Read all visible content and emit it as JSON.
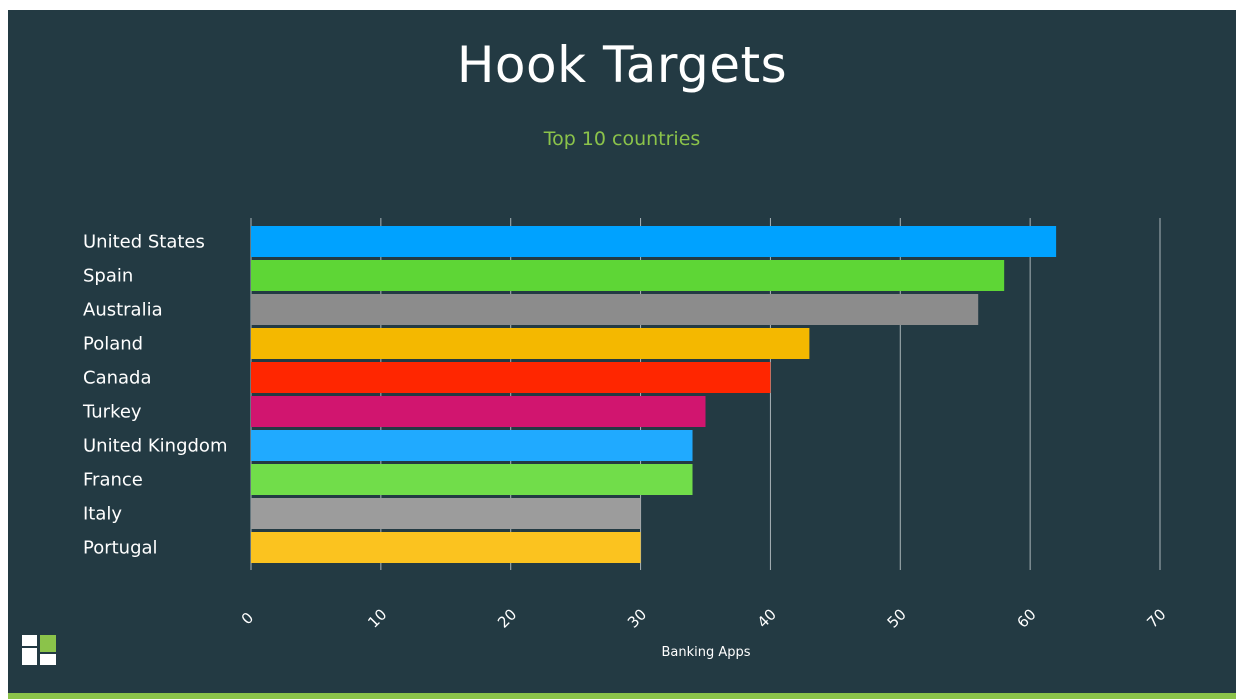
{
  "chart_data": {
    "type": "bar",
    "orientation": "horizontal",
    "title": "Hook Targets",
    "subtitle": "Top 10 countries",
    "xlabel": "Banking Apps",
    "ylabel": "",
    "categories": [
      "United States",
      "Spain",
      "Australia",
      "Poland",
      "Canada",
      "Turkey",
      "United Kingdom",
      "France",
      "Italy",
      "Portugal"
    ],
    "values": [
      62,
      58,
      56,
      43,
      40,
      35,
      34,
      34,
      30,
      30
    ],
    "colors": [
      "#00a2ff",
      "#5ed636",
      "#8c8c8c",
      "#f4b800",
      "#ff2600",
      "#d1156f",
      "#20aaff",
      "#71dd4a",
      "#9c9c9c",
      "#fbc31f"
    ],
    "xlim": [
      0,
      70
    ],
    "xticks": [
      "0",
      "10",
      "20",
      "30",
      "40",
      "50",
      "60",
      "70"
    ],
    "grid": true,
    "legend": "none"
  },
  "colors": {
    "background": "#233a43",
    "title": "#ffffff",
    "subtitle": "#8bc34a",
    "gridline": "#a9b4b8",
    "accent_strip": "#8bc34a"
  },
  "logo": {
    "icon": "brand-logo-icon"
  }
}
